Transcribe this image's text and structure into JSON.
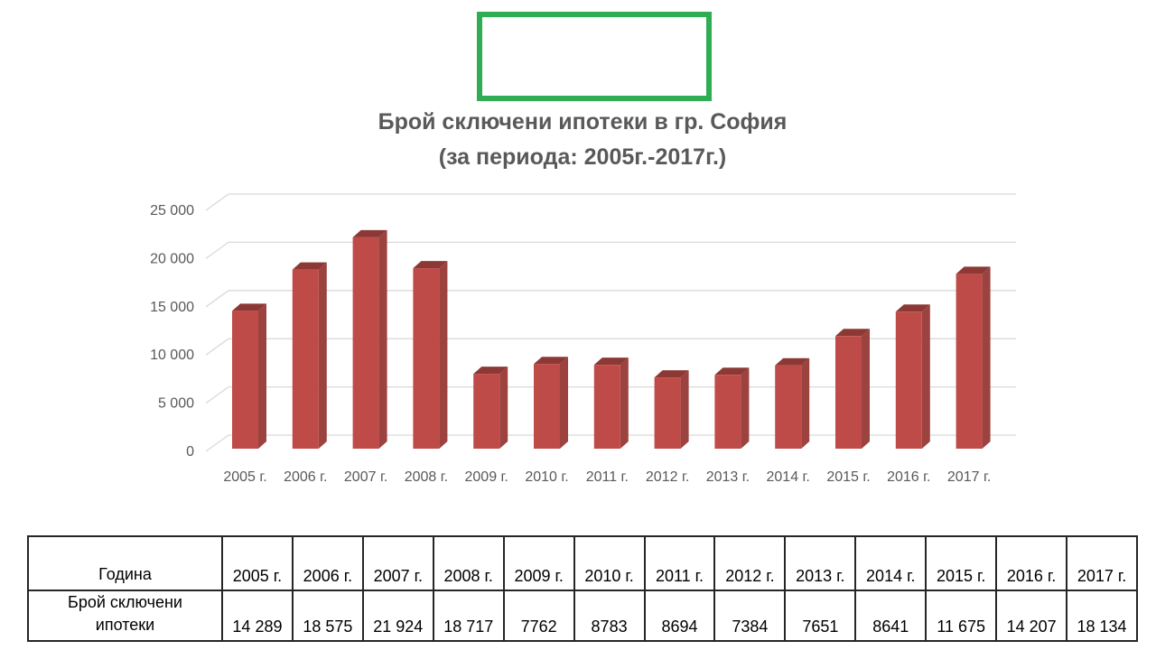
{
  "annotation_box": {
    "border_color": "#2fad53",
    "content": ""
  },
  "title": {
    "line1": "Брой сключени ипотеки в гр. София",
    "line2": "(за периода: 2005г.-2017г.)",
    "color": "#595959"
  },
  "chart_data": {
    "type": "bar",
    "style": "3d-column",
    "title": "Брой сключени ипотеки в гр. София (за периода: 2005г.-2017г.)",
    "categories": [
      "2005 г.",
      "2006 г.",
      "2007 г.",
      "2008 г.",
      "2009 г.",
      "2010 г.",
      "2011 г.",
      "2012 г.",
      "2013 г.",
      "2014 г.",
      "2015 г.",
      "2016 г.",
      "2017 г."
    ],
    "values": [
      14289,
      18575,
      21924,
      18717,
      7762,
      8783,
      8694,
      7384,
      7651,
      8641,
      11675,
      14207,
      18134
    ],
    "xlabel": "",
    "ylabel": "",
    "ylim": [
      0,
      25000
    ],
    "yticks": [
      0,
      5000,
      10000,
      15000,
      20000,
      25000
    ],
    "ytick_labels": [
      "0",
      "5 000",
      "10 000",
      "15 000",
      "20 000",
      "25 000"
    ],
    "grid": true,
    "legend": "none",
    "colors": {
      "bar_front": "#be4b48",
      "bar_side": "#9c423f",
      "bar_top": "#8c3936",
      "gridline": "#d9d9d9",
      "axis_labels": "#595959"
    }
  },
  "table": {
    "header_label": "Година",
    "value_label": "Брой сключени ипотеки",
    "years": [
      "2005 г.",
      "2006 г.",
      "2007 г.",
      "2008 г.",
      "2009 г.",
      "2010 г.",
      "2011 г.",
      "2012 г.",
      "2013 г.",
      "2014 г.",
      "2015 г.",
      "2016 г.",
      "2017 г."
    ],
    "values": [
      "14 289",
      "18 575",
      "21 924",
      "18 717",
      "7762",
      "8783",
      "8694",
      "7384",
      "7651",
      "8641",
      "11 675",
      "14 207",
      "18 134"
    ]
  }
}
